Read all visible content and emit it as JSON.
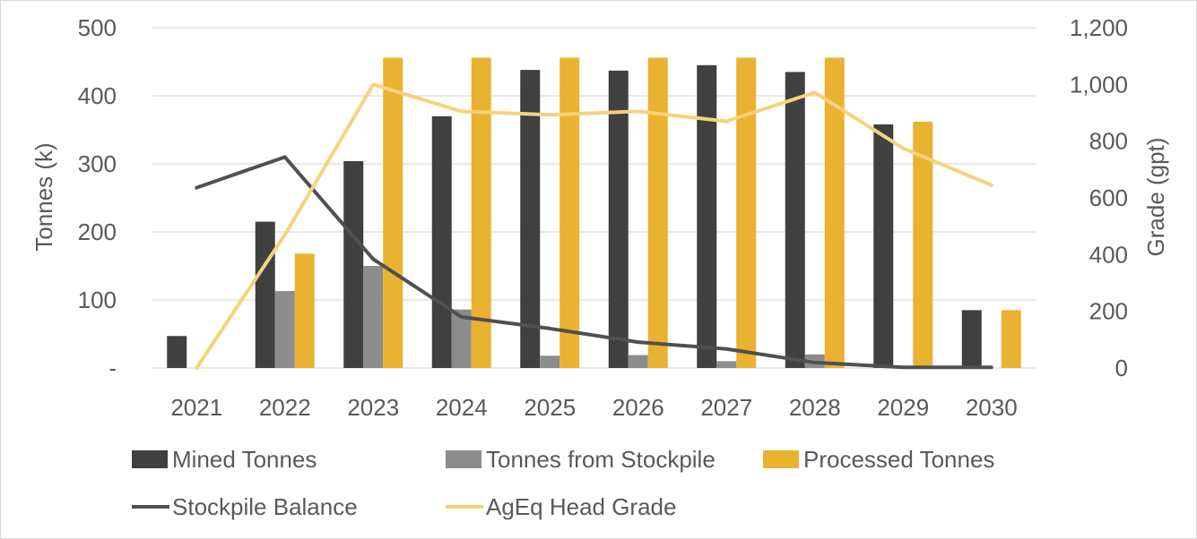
{
  "chart_data": {
    "type": "bar",
    "categories": [
      "2021",
      "2022",
      "2023",
      "2024",
      "2025",
      "2026",
      "2027",
      "2028",
      "2029",
      "2030"
    ],
    "y_left": {
      "label": "Tonnes (k)",
      "range": [
        0,
        500
      ],
      "ticks": [
        0,
        100,
        200,
        300,
        400,
        500
      ],
      "tick_labels": [
        "-",
        "100",
        "200",
        "300",
        "400",
        "500"
      ]
    },
    "y_right": {
      "label": "Grade (gpt)",
      "range": [
        0,
        1200
      ],
      "ticks": [
        0,
        200,
        400,
        600,
        800,
        1000,
        1200
      ],
      "tick_labels": [
        "0",
        "200",
        "400",
        "600",
        "800",
        "1,000",
        "1,200"
      ]
    },
    "grid": true,
    "legend_position": "bottom",
    "series": [
      {
        "name": "Mined Tonnes",
        "kind": "bar",
        "axis": "left",
        "color": "#404040",
        "values": [
          47,
          215,
          304,
          370,
          438,
          437,
          445,
          435,
          358,
          85
        ]
      },
      {
        "name": "Tonnes from Stockpile",
        "kind": "bar",
        "axis": "left",
        "color": "#8c8c8c",
        "values": [
          0,
          113,
          150,
          86,
          18,
          19,
          10,
          20,
          0,
          0
        ]
      },
      {
        "name": "Processed Tonnes",
        "kind": "bar",
        "axis": "left",
        "color": "#e9b231",
        "values": [
          0,
          168,
          456,
          456,
          456,
          456,
          456,
          456,
          362,
          85
        ]
      },
      {
        "name": "Stockpile Balance",
        "kind": "line",
        "axis": "left",
        "color": "#505050",
        "values": [
          265,
          310,
          160,
          75,
          58,
          38,
          28,
          8,
          1,
          1
        ]
      },
      {
        "name": "AgEq Head Grade",
        "kind": "line",
        "axis": "right",
        "color": "#f6d27c",
        "values": [
          0,
          470,
          1000,
          905,
          893,
          905,
          870,
          972,
          775,
          645
        ]
      }
    ]
  }
}
